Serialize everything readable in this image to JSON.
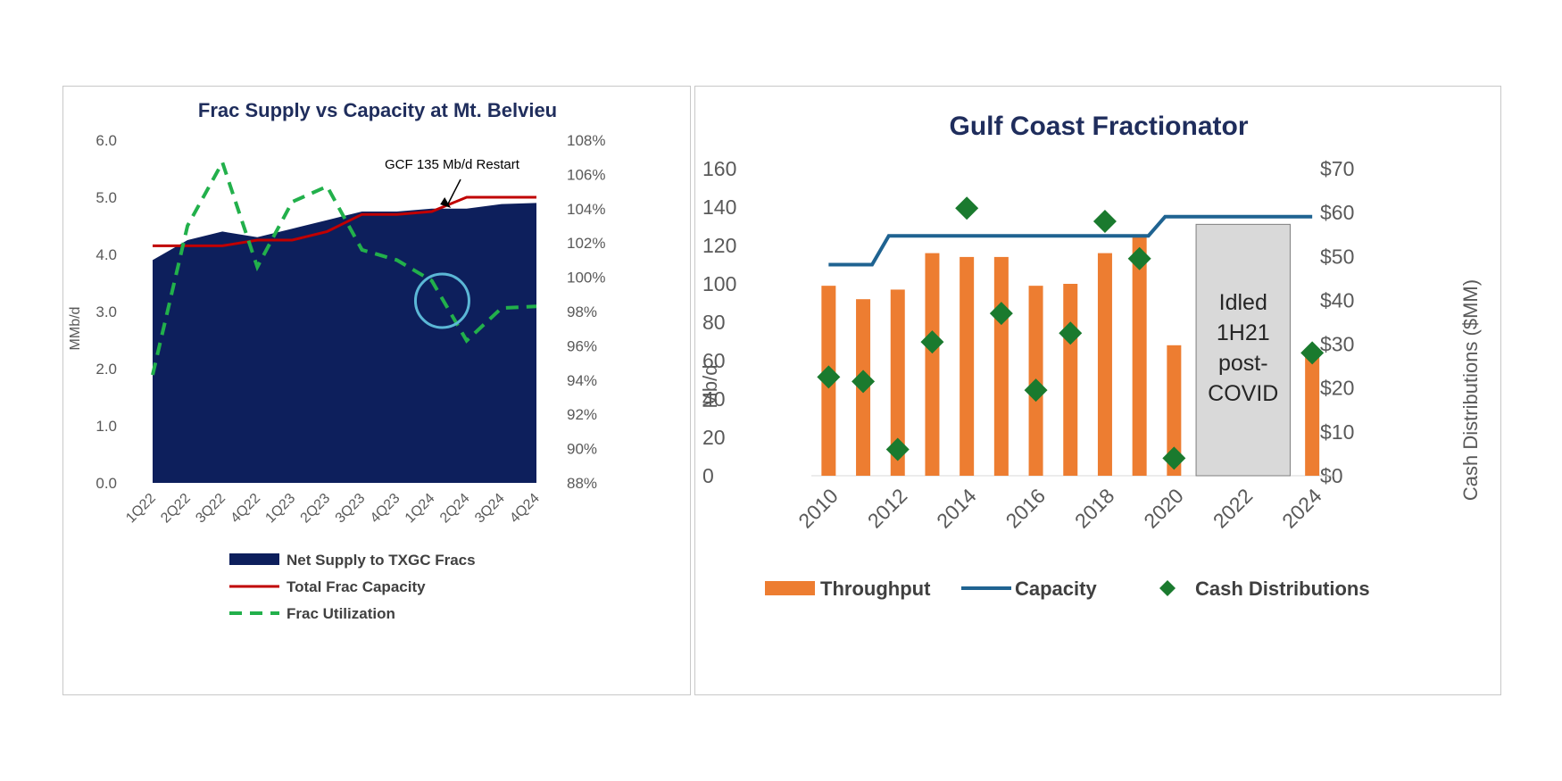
{
  "chart_data": [
    {
      "type": "area",
      "title": "Frac Supply vs Capacity at Mt. Belvieu",
      "ylabel": "MMb/d",
      "ylim": [
        0,
        6
      ],
      "y_ticks": [
        "0.0",
        "1.0",
        "2.0",
        "3.0",
        "4.0",
        "5.0",
        "6.0"
      ],
      "y2lim": [
        88,
        108
      ],
      "y2_ticks": [
        "88%",
        "90%",
        "92%",
        "94%",
        "96%",
        "98%",
        "100%",
        "102%",
        "104%",
        "106%",
        "108%"
      ],
      "categories": [
        "1Q22",
        "2Q22",
        "3Q22",
        "4Q22",
        "1Q23",
        "2Q23",
        "3Q23",
        "4Q23",
        "1Q24",
        "2Q24",
        "3Q24",
        "4Q24"
      ],
      "series": [
        {
          "name": "Net Supply to TXGC Fracs",
          "type": "area",
          "axis": "left",
          "color": "#0d1f5c",
          "values": [
            3.9,
            4.25,
            4.4,
            4.3,
            4.45,
            4.6,
            4.75,
            4.75,
            4.8,
            4.8,
            4.88,
            4.9
          ]
        },
        {
          "name": "Total Frac Capacity",
          "type": "line",
          "axis": "left",
          "color": "#c00000",
          "values": [
            4.15,
            4.15,
            4.15,
            4.25,
            4.25,
            4.4,
            4.7,
            4.7,
            4.75,
            5.0,
            5.0,
            5.0
          ]
        },
        {
          "name": "Frac Utilization",
          "type": "line",
          "axis": "right",
          "dashed": true,
          "color": "#22b04b",
          "values": [
            94.3,
            103.0,
            106.7,
            100.6,
            104.4,
            105.3,
            101.6,
            101.0,
            99.8,
            96.3,
            98.2,
            98.3
          ]
        }
      ],
      "annotation": {
        "text": "GCF 135 Mb/d Restart",
        "target_index": 8.6
      },
      "highlight_circle_index": 8.3,
      "legend_position": "bottom"
    },
    {
      "type": "bar",
      "title": "Gulf Coast Fractionator",
      "ylabel": "Mb/d",
      "y2label": "Cash Distributions ($MM)",
      "ylim": [
        0,
        160
      ],
      "y_ticks": [
        "0",
        "20",
        "40",
        "60",
        "80",
        "100",
        "120",
        "140",
        "160"
      ],
      "y2lim": [
        0,
        70
      ],
      "y2_ticks": [
        "$0",
        "$10",
        "$20",
        "$30",
        "$40",
        "$50",
        "$60",
        "$70"
      ],
      "x_tick_labels": [
        "2010",
        "2012",
        "2014",
        "2016",
        "2018",
        "2020",
        "2022",
        "2024"
      ],
      "years": [
        2010,
        2011,
        2012,
        2013,
        2014,
        2015,
        2016,
        2017,
        2018,
        2019,
        2020,
        2021,
        2022,
        2023,
        2024
      ],
      "series": [
        {
          "name": "Throughput",
          "type": "bar",
          "axis": "left",
          "color": "#ed7d31",
          "values": [
            99,
            92,
            97,
            116,
            114,
            114,
            99,
            100,
            116,
            125,
            68,
            null,
            null,
            null,
            62
          ]
        },
        {
          "name": "Capacity",
          "type": "line",
          "axis": "left",
          "color": "#1f6391",
          "values": [
            110,
            110,
            125,
            125,
            125,
            125,
            125,
            125,
            125,
            125,
            135,
            135,
            135,
            135,
            135
          ]
        },
        {
          "name": "Cash Distributions",
          "type": "scatter",
          "axis": "right",
          "marker": "diamond",
          "color": "#1a7a2e",
          "values": [
            22.5,
            21.5,
            6,
            30.5,
            61,
            37,
            19.5,
            32.5,
            58,
            49.5,
            4,
            null,
            null,
            null,
            28
          ]
        }
      ],
      "idle_box": {
        "text_lines": [
          "Idled",
          "1H21",
          "post-",
          "COVID"
        ],
        "from_year": 2021,
        "to_year": 2023
      },
      "legend_position": "bottom"
    }
  ]
}
